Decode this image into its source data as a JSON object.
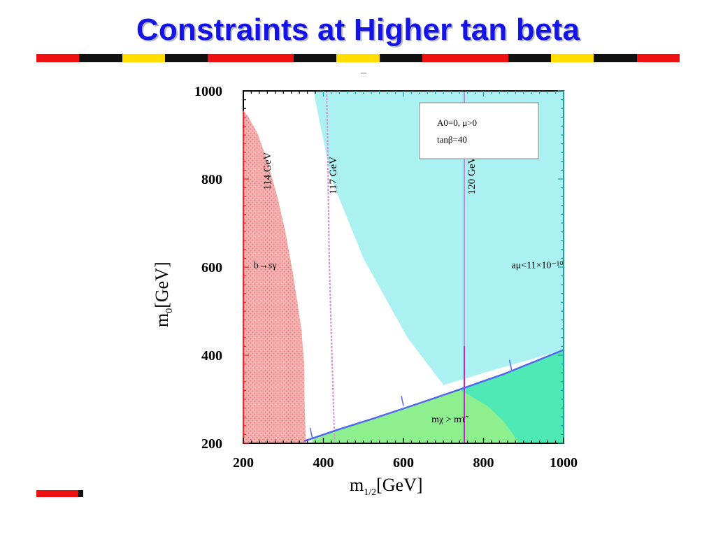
{
  "slide": {
    "title": "Constraints at Higher tan beta",
    "accent_color": "#1414e6",
    "stripe_colors": [
      "#ee1111",
      "#111111",
      "#ffdd00",
      "#111111",
      "#ee1111",
      "#ee1111",
      "#111111",
      "#ffdd00",
      "#111111",
      "#ee1111",
      "#ee1111",
      "#111111",
      "#ffdd00",
      "#111111",
      "#ee1111"
    ]
  },
  "chart_data": {
    "type": "area",
    "xlabel_main": "m",
    "xlabel_sub": "1/2",
    "xlabel_unit": "[GeV]",
    "ylabel_main": "m",
    "ylabel_sub": "0",
    "ylabel_unit": "[GeV]",
    "xlim": [
      200,
      1000
    ],
    "ylim": [
      200,
      1000
    ],
    "xticks": [
      200,
      400,
      600,
      800,
      1000
    ],
    "yticks": [
      200,
      400,
      600,
      800,
      1000
    ],
    "legend_box": {
      "line1": "A0=0, μ>0",
      "line2": "tanβ=40"
    },
    "regions": [
      {
        "name": "b→sγ excluded",
        "color": "#f2a0a0",
        "points": [
          [
            200,
            955
          ],
          [
            210,
            945
          ],
          [
            235,
            905
          ],
          [
            260,
            840
          ],
          [
            285,
            760
          ],
          [
            305,
            680
          ],
          [
            325,
            580
          ],
          [
            345,
            460
          ],
          [
            352,
            380
          ],
          [
            353,
            300
          ],
          [
            356,
            200
          ],
          [
            200,
            200
          ]
        ]
      },
      {
        "name": "aμ<11×10⁻¹⁰",
        "color": "#a6f0f0",
        "points": [
          [
            375,
            1000
          ],
          [
            1000,
            1000
          ],
          [
            1000,
            412
          ],
          [
            820,
            365
          ],
          [
            700,
            332
          ],
          [
            610,
            440
          ],
          [
            500,
            620
          ],
          [
            420,
            800
          ],
          [
            375,
            1000
          ]
        ]
      },
      {
        "name": "mχ>mτ̃ excluded",
        "color": "#88ee88",
        "points": [
          [
            372,
            210
          ],
          [
            440,
            232
          ],
          [
            520,
            255
          ],
          [
            620,
            285
          ],
          [
            740,
            322
          ],
          [
            790,
            340
          ],
          [
            850,
            357
          ],
          [
            1000,
            412
          ],
          [
            1000,
            200
          ],
          [
            372,
            200
          ]
        ]
      },
      {
        "name": "overlap",
        "color": "#4ce8b8",
        "points": [
          [
            740,
            322
          ],
          [
            790,
            340
          ],
          [
            850,
            357
          ],
          [
            1000,
            412
          ],
          [
            1000,
            200
          ],
          [
            890,
            200
          ],
          [
            850,
            250
          ],
          [
            810,
            285
          ]
        ]
      }
    ],
    "curves": [
      {
        "name": "117 GeV",
        "color": "#dd88dd",
        "dashed": true,
        "points": [
          [
            408,
            1000
          ],
          [
            410,
            920
          ],
          [
            412,
            780
          ],
          [
            414,
            650
          ],
          [
            418,
            500
          ],
          [
            423,
            350
          ],
          [
            428,
            205
          ]
        ]
      },
      {
        "name": "120 GeV",
        "color": "#bb88ee",
        "dashed": false,
        "points": [
          [
            752,
            1000
          ],
          [
            752,
            420
          ]
        ]
      },
      {
        "name": "120 GeV-lower",
        "color": "#cc22cc",
        "dashed": false,
        "points": [
          [
            752,
            420
          ],
          [
            752,
            200
          ]
        ]
      },
      {
        "name": "boundary",
        "color": "#5566ee",
        "dashed": false,
        "points": [
          [
            352,
            205
          ],
          [
            440,
            232
          ],
          [
            520,
            255
          ],
          [
            620,
            285
          ],
          [
            740,
            322
          ],
          [
            850,
            357
          ],
          [
            1000,
            412
          ]
        ]
      }
    ],
    "annotations": [
      {
        "text": "114 GeV",
        "x": 268,
        "y": 818,
        "rotate": true
      },
      {
        "text": "117 GeV",
        "x": 432,
        "y": 808,
        "rotate": true
      },
      {
        "text": "120 GeV",
        "x": 778,
        "y": 808,
        "rotate": true
      },
      {
        "text": "b→sγ",
        "x": 226,
        "y": 598,
        "rotate": false
      },
      {
        "text": "aμ<11×10⁻¹⁰",
        "x": 870,
        "y": 598,
        "rotate": false
      },
      {
        "text": "mχ > mτ̃",
        "x": 670,
        "y": 248,
        "rotate": false
      }
    ]
  }
}
